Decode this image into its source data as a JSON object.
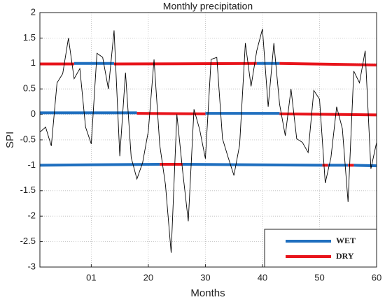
{
  "chart_data": {
    "type": "line",
    "title": "Monthly precipitation",
    "x_label": "Months",
    "y_label": "SPI",
    "x": [
      1,
      2,
      3,
      4,
      5,
      6,
      7,
      8,
      9,
      10,
      11,
      12,
      13,
      14,
      15,
      16,
      17,
      18,
      19,
      20,
      21,
      22,
      23,
      24,
      25,
      26,
      27,
      28,
      29,
      30,
      31,
      32,
      33,
      34,
      35,
      36,
      37,
      38,
      39,
      40,
      41,
      42,
      43,
      44,
      45,
      46,
      47,
      48,
      49,
      50,
      51,
      52,
      53,
      54,
      55,
      56,
      57,
      58,
      59,
      60
    ],
    "values": [
      -0.35,
      -0.25,
      -0.62,
      0.62,
      0.8,
      1.5,
      0.7,
      0.9,
      -0.25,
      -0.58,
      1.2,
      1.12,
      0.5,
      1.65,
      -0.82,
      0.82,
      -0.85,
      -1.27,
      -0.95,
      -0.33,
      1.08,
      -0.6,
      -1.38,
      -2.72,
      0,
      -1.1,
      -2.1,
      0.1,
      -0.3,
      -0.87,
      1.08,
      1.12,
      -0.48,
      -0.85,
      -1.2,
      -0.6,
      1.4,
      0.55,
      1.25,
      1.68,
      0.15,
      1.4,
      0.2,
      -0.42,
      0.5,
      -0.48,
      -0.55,
      -0.75,
      0.47,
      0.3,
      -1.35,
      -0.85,
      0.15,
      -0.28,
      -1.72,
      0.85,
      0.62,
      1.25,
      -1.07,
      -0.55
    ],
    "color": "#000000",
    "series": [
      {
        "name": "WET",
        "color": "#1f6fbf",
        "segments": [
          {
            "x": [
              7,
              14
            ],
            "values": [
              1.0,
              1.0
            ]
          },
          {
            "x": [
              39,
              43
            ],
            "values": [
              1.0,
              1.0
            ]
          },
          {
            "x": [
              1,
              18
            ],
            "values": [
              0.03,
              0.03
            ]
          },
          {
            "x": [
              30,
              43
            ],
            "values": [
              0.02,
              0.02
            ]
          },
          {
            "x": [
              1,
              22
            ],
            "values": [
              -1.0,
              -0.98
            ]
          },
          {
            "x": [
              26,
              50.5
            ],
            "values": [
              -0.98,
              -1.0
            ]
          },
          {
            "x": [
              51.5,
              55
            ],
            "values": [
              -1.0,
              -1.0
            ]
          },
          {
            "x": [
              56,
              60
            ],
            "values": [
              -1.0,
              -1.01
            ]
          }
        ]
      },
      {
        "name": "DRY",
        "color": "#e8141b",
        "segments": [
          {
            "x": [
              1,
              7
            ],
            "values": [
              0.99,
              0.99
            ]
          },
          {
            "x": [
              14,
              39
            ],
            "values": [
              0.99,
              1.0
            ]
          },
          {
            "x": [
              43,
              60
            ],
            "values": [
              1.0,
              0.97
            ]
          },
          {
            "x": [
              18,
              30
            ],
            "values": [
              0.02,
              0.01
            ]
          },
          {
            "x": [
              43,
              60
            ],
            "values": [
              0.01,
              -0.01
            ]
          },
          {
            "x": [
              22,
              26
            ],
            "values": [
              -0.98,
              -0.98
            ]
          },
          {
            "x": [
              50.5,
              51.5
            ],
            "values": [
              -1.0,
              -1.0
            ]
          },
          {
            "x": [
              55,
              56
            ],
            "values": [
              -1.0,
              -1.0
            ]
          }
        ]
      }
    ],
    "xlim": [
      1,
      60
    ],
    "xticks": [
      {
        "value": 10,
        "label": "01"
      },
      20,
      30,
      40,
      50,
      60
    ],
    "ylim": [
      -3,
      2
    ],
    "yticks": [
      -3,
      -2.5,
      -2,
      -1.5,
      -1,
      -0.5,
      0,
      0.5,
      1,
      1.5,
      2
    ],
    "grid": true,
    "legend": "lower right"
  }
}
